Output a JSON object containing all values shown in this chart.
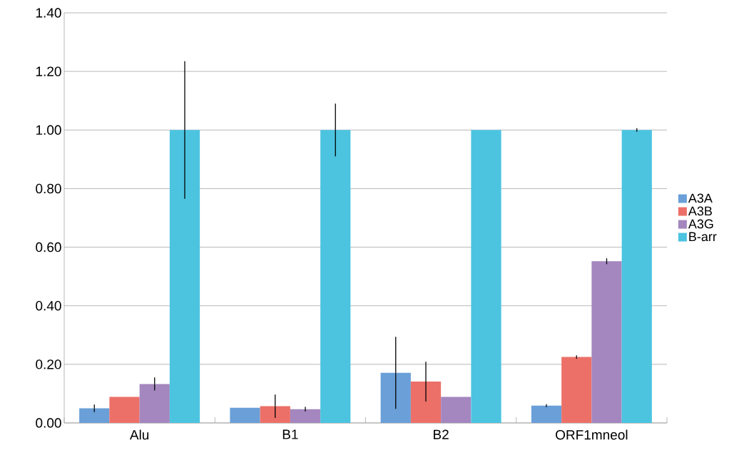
{
  "chart_data": {
    "type": "bar",
    "categories": [
      "Alu",
      "B1",
      "B2",
      "ORF1mneol"
    ],
    "series": [
      {
        "name": "A3A",
        "color": "#6a9fd8",
        "values": [
          0.05,
          0.052,
          0.171,
          0.059
        ],
        "errors": [
          0.013,
          null,
          0.123,
          0.005
        ]
      },
      {
        "name": "A3B",
        "color": "#ec7068",
        "values": [
          0.089,
          0.057,
          0.141,
          0.225
        ],
        "errors": [
          null,
          0.04,
          0.068,
          0.006
        ]
      },
      {
        "name": "A3G",
        "color": "#a487bf",
        "values": [
          0.133,
          0.047,
          0.089,
          0.552
        ],
        "errors": [
          0.022,
          0.008,
          null,
          0.01
        ]
      },
      {
        "name": "B-arr",
        "color": "#4cc4e0",
        "values": [
          1.0,
          1.0,
          1.0,
          1.0
        ],
        "errors": [
          0.235,
          0.09,
          null,
          0.006
        ]
      }
    ],
    "ylim": [
      0,
      1.4
    ],
    "yticks": [
      {
        "value": 0,
        "label": "0.00"
      },
      {
        "value": 0.2,
        "label": "0.20"
      },
      {
        "value": 0.4,
        "label": "0.40"
      },
      {
        "value": 0.6,
        "label": "0.60"
      },
      {
        "value": 0.8,
        "label": "0.80"
      },
      {
        "value": 1.0,
        "label": "1.00"
      },
      {
        "value": 1.2,
        "label": "1.20"
      },
      {
        "value": 1.4,
        "label": "1.40"
      }
    ],
    "grid": "y",
    "legend": "right"
  }
}
